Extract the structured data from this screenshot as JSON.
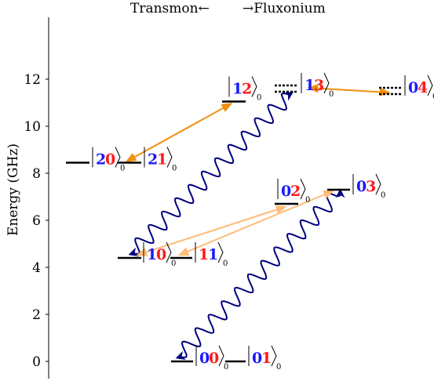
{
  "header": {
    "left_label": "Transmon←",
    "right_label": "→Fluxonium"
  },
  "y_axis": {
    "label": "Energy (GHz)",
    "ticks": [
      "0",
      "2",
      "4",
      "6",
      "8",
      "10",
      "12"
    ]
  },
  "colors": {
    "blue_digit": "#1a1aff",
    "red_digit": "#ff1a1a",
    "orange_arrow": "#f0900f",
    "light_orange_arrow": "#ffbb77",
    "wavy": "#000080"
  },
  "levels": [
    {
      "id": "l00",
      "energy": 0.0,
      "a": "0",
      "b": "0",
      "ca": "blue",
      "cb": "red",
      "style": "solid"
    },
    {
      "id": "l01",
      "energy": 0.0,
      "a": "0",
      "b": "1",
      "ca": "blue",
      "cb": "red",
      "style": "solid"
    },
    {
      "id": "l10",
      "energy": 4.4,
      "a": "1",
      "b": "0",
      "ca": "blue",
      "cb": "red",
      "style": "solid"
    },
    {
      "id": "l11",
      "energy": 4.4,
      "a": "1",
      "b": "1",
      "ca": "red",
      "cb": "blue",
      "style": "solid"
    },
    {
      "id": "l02",
      "energy": 6.7,
      "a": "0",
      "b": "2",
      "ca": "blue",
      "cb": "red",
      "style": "solid"
    },
    {
      "id": "l03",
      "energy": 7.3,
      "a": "0",
      "b": "3",
      "ca": "blue",
      "cb": "red",
      "style": "solid"
    },
    {
      "id": "l20",
      "energy": 8.45,
      "a": "2",
      "b": "0",
      "ca": "blue",
      "cb": "red",
      "style": "solid"
    },
    {
      "id": "l21",
      "energy": 8.45,
      "a": "2",
      "b": "1",
      "ca": "blue",
      "cb": "red",
      "style": "solid"
    },
    {
      "id": "l12",
      "energy": 11.05,
      "a": "1",
      "b": "2",
      "ca": "blue",
      "cb": "red",
      "style": "solid"
    },
    {
      "id": "l13",
      "energy": 11.6,
      "a": "1",
      "b": "3",
      "ca": "blue",
      "cb": "red",
      "style": "dotted"
    },
    {
      "id": "l04",
      "energy": 11.5,
      "a": "0",
      "b": "4",
      "ca": "blue",
      "cb": "red",
      "style": "dotted"
    }
  ],
  "subscript": "0"
}
